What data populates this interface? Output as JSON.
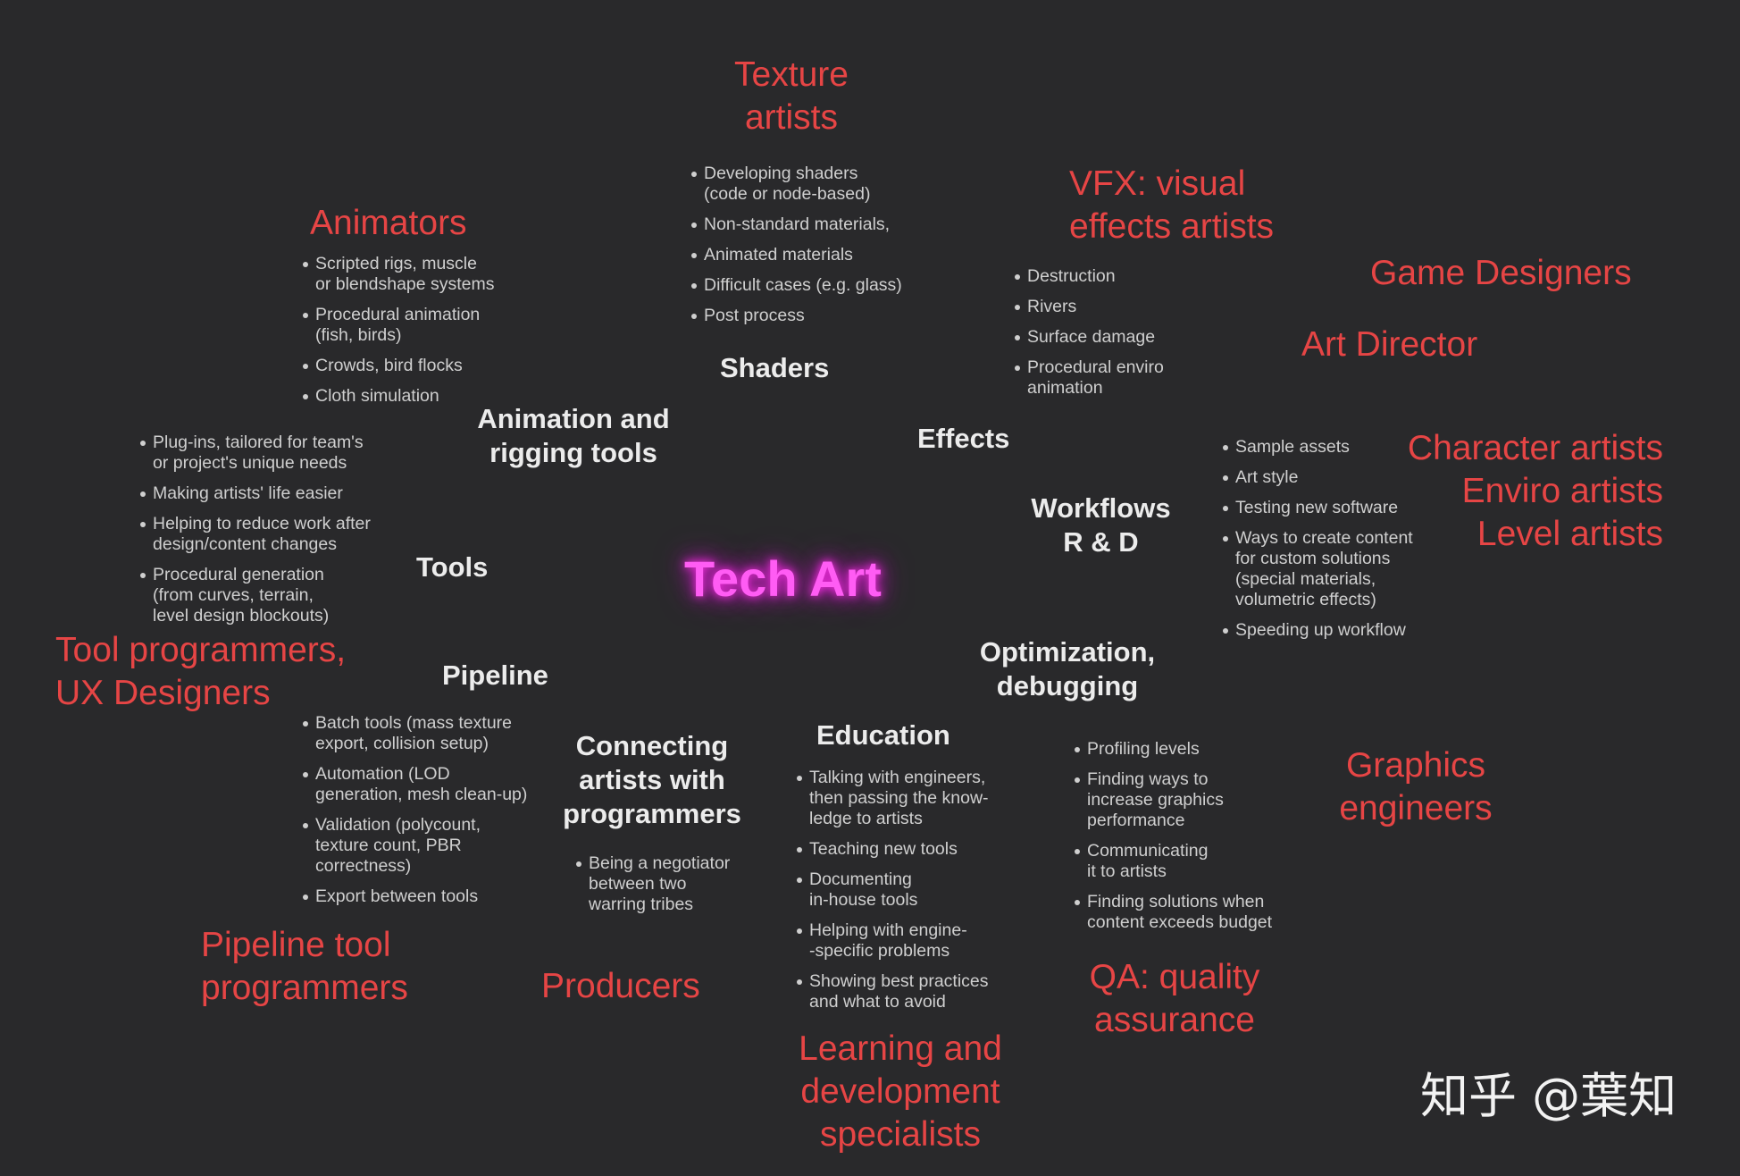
{
  "center": "Tech Art",
  "watermark": "知乎 @葉知",
  "roles": {
    "texture_artists": "Texture\nartists",
    "vfx": "VFX: visual\neffects artists",
    "animators": "Animators",
    "game_designers": "Game Designers",
    "art_director": "Art Director",
    "character_artists": "Character artists",
    "enviro_artists": "Enviro artists",
    "level_artists": "Level artists",
    "tool_programmers": "Tool programmers,\nUX Designers",
    "graphics_engineers": "Graphics\nengineers",
    "pipeline_tool_programmers": "Pipeline tool\nprogrammers",
    "producers": "Producers",
    "qa": "QA: quality\nassurance",
    "learning": "Learning and\ndevelopment\nspecialists"
  },
  "categories": {
    "shaders": "Shaders",
    "animation_rigging": "Animation and\nrigging tools",
    "effects": "Effects",
    "workflows": "Workflows\nR & D",
    "tools": "Tools",
    "pipeline": "Pipeline",
    "optimization": "Optimization,\ndebugging",
    "connecting": "Connecting\nartists with\nprogrammers",
    "education": "Education"
  },
  "lists": {
    "shaders": [
      "Developing shaders\n(code or node-based)",
      "Non-standard materials,",
      "Animated materials",
      "Difficult cases (e.g. glass)",
      "Post process"
    ],
    "animators": [
      "Scripted rigs, muscle\nor blendshape systems",
      "Procedural animation\n(fish, birds)",
      "Crowds, bird flocks",
      "Cloth simulation"
    ],
    "effects": [
      "Destruction",
      "Rivers",
      "Surface damage",
      "Procedural enviro\nanimation"
    ],
    "tools": [
      "Plug-ins, tailored for team's\nor project's unique needs",
      "Making artists' life easier",
      "Helping to reduce work after\ndesign/content changes",
      "Procedural generation\n(from curves, terrain,\nlevel design blockouts)"
    ],
    "workflows": [
      "Sample assets",
      "Art style",
      "Testing new software",
      "Ways to create content\nfor custom solutions\n(special materials,\nvolumetric effects)",
      "Speeding up workflow"
    ],
    "pipeline": [
      "Batch tools (mass texture\nexport, collision setup)",
      "Automation (LOD\ngeneration, mesh clean-up)",
      "Validation (polycount,\ntexture count, PBR\ncorrectness)",
      "Export between tools"
    ],
    "connecting": [
      "Being a negotiator\nbetween two\nwarring tribes"
    ],
    "education": [
      "Talking with engineers,\nthen passing the know-\nledge to artists",
      "Teaching new tools",
      "Documenting\nin-house tools",
      "Helping with engine-\n-specific problems",
      "Showing best practices\nand what to avoid"
    ],
    "optimization": [
      "Profiling levels",
      "Finding ways to\nincrease graphics\nperformance",
      "Communicating\nit to artists",
      "Finding solutions when\ncontent exceeds budget"
    ]
  }
}
